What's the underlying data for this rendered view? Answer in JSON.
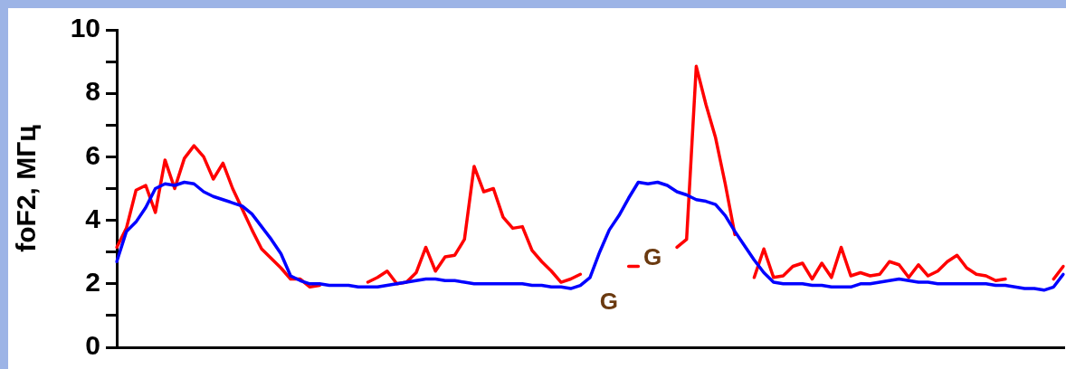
{
  "chart_data": {
    "type": "line",
    "ylabel": "foF2, МГц",
    "categories": [
      null,
      null,
      null,
      null,
      null,
      null,
      null,
      null,
      null,
      null,
      null,
      null,
      null,
      null,
      null,
      null,
      null,
      null,
      null,
      null,
      null,
      null,
      null,
      null,
      null,
      null,
      null,
      null,
      null,
      null,
      null,
      null,
      null,
      null,
      null,
      null,
      null,
      null,
      null,
      null,
      null,
      null,
      null,
      null,
      null,
      null,
      null,
      null,
      null,
      null,
      null,
      null,
      null,
      null,
      null,
      null,
      null,
      null,
      null,
      null,
      null,
      null,
      null,
      null,
      null,
      null,
      null,
      null,
      null,
      null,
      null,
      null,
      null,
      null,
      null,
      null,
      null,
      null,
      null,
      null,
      null,
      null,
      null,
      null,
      null,
      null,
      null,
      null,
      null,
      null,
      null,
      null,
      null,
      null,
      null,
      null,
      null,
      null,
      null
    ],
    "ylim": [
      0,
      10
    ],
    "yticks": [
      0,
      {
        "value": 1,
        "label": null
      },
      2,
      {
        "value": 3,
        "label": null
      },
      4,
      {
        "value": 5,
        "label": null
      },
      6,
      {
        "value": 7,
        "label": null
      },
      8,
      {
        "value": 9,
        "label": null
      },
      10
    ],
    "grid": false,
    "legend": false,
    "marker": "none",
    "line_style": "solid",
    "series": [
      {
        "color": "#0000ff",
        "values": [
          2.7,
          3.65,
          3.95,
          4.4,
          5.0,
          5.15,
          5.1,
          5.2,
          5.15,
          4.9,
          4.75,
          4.65,
          4.55,
          4.45,
          4.2,
          3.8,
          3.4,
          2.95,
          2.25,
          2.1,
          2.0,
          2.0,
          1.95,
          1.95,
          1.95,
          1.9,
          1.9,
          1.9,
          1.95,
          2.0,
          2.05,
          2.1,
          2.15,
          2.15,
          2.1,
          2.1,
          2.05,
          2.0,
          2.0,
          2.0,
          2.0,
          2.0,
          2.0,
          1.95,
          1.95,
          1.9,
          1.9,
          1.85,
          1.95,
          2.2,
          3.0,
          3.7,
          4.15,
          4.7,
          5.2,
          5.15,
          5.2,
          5.1,
          4.9,
          4.8,
          4.65,
          4.6,
          4.5,
          4.15,
          3.65,
          3.2,
          2.75,
          2.35,
          2.05,
          2.0,
          2.0,
          2.0,
          1.95,
          1.95,
          1.9,
          1.9,
          1.9,
          2.0,
          2.0,
          2.05,
          2.1,
          2.15,
          2.1,
          2.05,
          2.05,
          2.0,
          2.0,
          2.0,
          2.0,
          2.0,
          2.0,
          1.95,
          1.95,
          1.9,
          1.85,
          1.85,
          1.8,
          1.9,
          2.3
        ]
      },
      {
        "color": "#ff0000",
        "values": [
          3.15,
          3.75,
          4.95,
          5.1,
          4.25,
          5.9,
          5.0,
          5.95,
          6.35,
          6.0,
          5.3,
          5.8,
          5.0,
          4.35,
          3.7,
          3.1,
          2.8,
          2.5,
          2.15,
          2.15,
          1.9,
          1.95,
          null,
          null,
          null,
          null,
          2.05,
          2.2,
          2.4,
          2.0,
          2.05,
          2.35,
          3.15,
          2.4,
          2.85,
          2.9,
          3.4,
          5.7,
          4.9,
          5.0,
          4.1,
          3.75,
          3.8,
          3.05,
          2.7,
          2.4,
          2.05,
          2.15,
          2.3,
          null,
          null,
          null,
          null,
          2.55,
          2.55,
          null,
          null,
          null,
          3.15,
          3.4,
          8.85,
          7.65,
          6.6,
          5.15,
          3.55,
          null,
          2.2,
          3.1,
          2.2,
          2.25,
          2.55,
          2.65,
          2.15,
          2.65,
          2.2,
          3.15,
          2.25,
          2.35,
          2.25,
          2.3,
          2.7,
          2.6,
          2.2,
          2.6,
          2.25,
          2.4,
          2.7,
          2.9,
          2.5,
          2.3,
          2.25,
          2.1,
          2.15,
          null,
          null,
          null,
          null,
          2.15,
          2.55
        ]
      }
    ],
    "annotations": [
      "G",
      "G"
    ]
  }
}
